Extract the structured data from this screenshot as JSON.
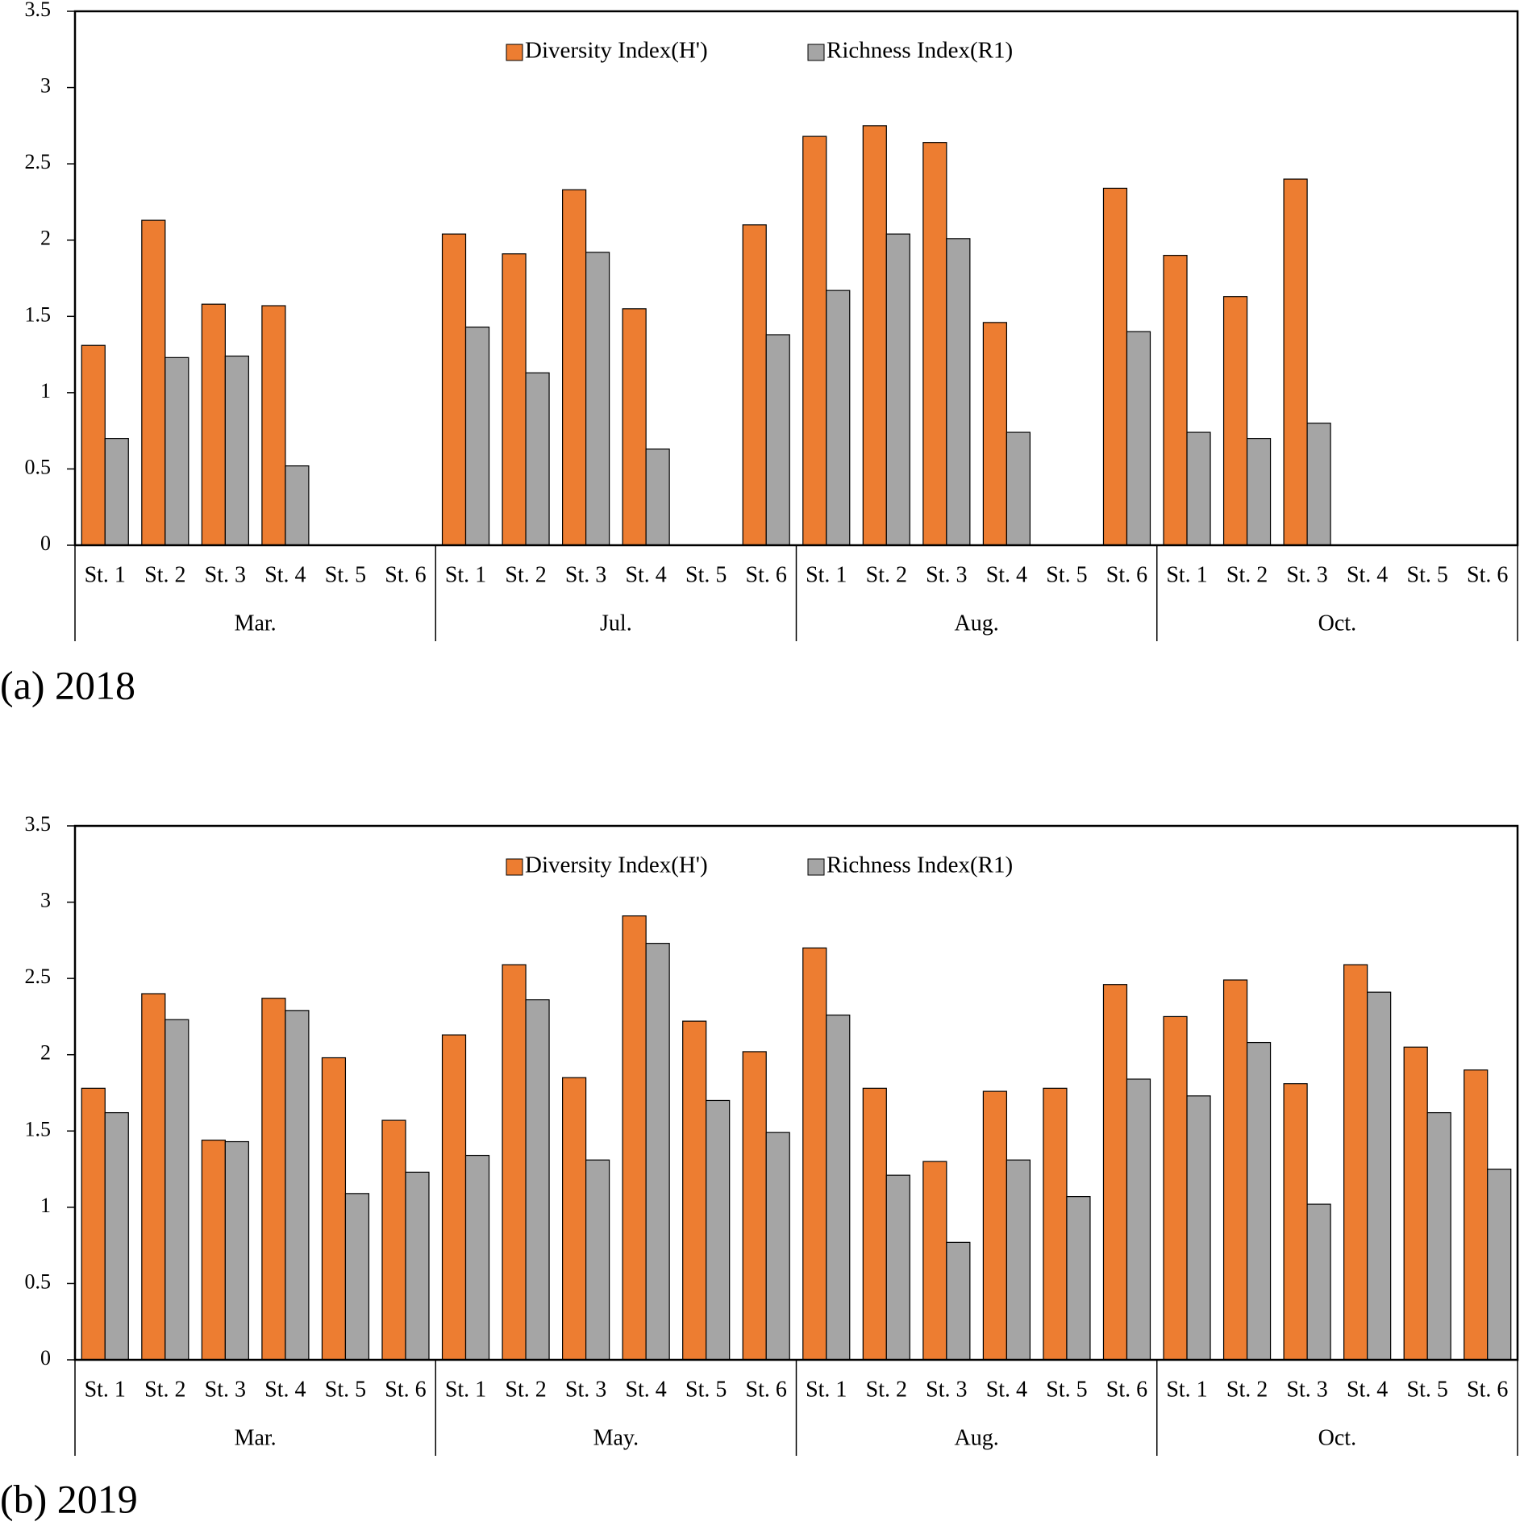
{
  "chart_data": [
    {
      "type": "bar",
      "caption": "(a) 2018",
      "categories": [
        "St. 1",
        "St. 2",
        "St. 3",
        "St. 4",
        "St. 5",
        "St. 6",
        "St. 1",
        "St. 2",
        "St. 3",
        "St. 4",
        "St. 5",
        "St. 6",
        "St. 1",
        "St. 2",
        "St. 3",
        "St. 4",
        "St. 5",
        "St. 6",
        "St. 1",
        "St. 2",
        "St. 3",
        "St. 4",
        "St. 5",
        "St. 6"
      ],
      "groups": [
        "Mar.",
        "Jul.",
        "Aug.",
        "Oct."
      ],
      "series": [
        {
          "name": "Diversity Index(H')",
          "color": "#ED7D31",
          "values": [
            1.31,
            2.13,
            1.58,
            1.57,
            null,
            null,
            2.04,
            1.91,
            2.33,
            1.55,
            null,
            2.1,
            2.68,
            2.75,
            2.64,
            1.46,
            null,
            2.34,
            1.9,
            1.63,
            2.4,
            null,
            null,
            null
          ]
        },
        {
          "name": "Richness Index(R1)",
          "color": "#A5A5A5",
          "values": [
            0.7,
            1.23,
            1.24,
            0.52,
            null,
            null,
            1.43,
            1.13,
            1.92,
            0.63,
            null,
            1.38,
            1.67,
            2.04,
            2.01,
            0.74,
            null,
            1.4,
            0.74,
            0.7,
            0.8,
            null,
            null,
            null
          ]
        }
      ],
      "ylim": [
        0,
        3.5
      ],
      "yticks": [
        0,
        0.5,
        1,
        1.5,
        2,
        2.5,
        3,
        3.5
      ],
      "legend": "top"
    },
    {
      "type": "bar",
      "caption": "(b) 2019",
      "categories": [
        "St. 1",
        "St. 2",
        "St. 3",
        "St. 4",
        "St. 5",
        "St. 6",
        "St. 1",
        "St. 2",
        "St. 3",
        "St. 4",
        "St. 5",
        "St. 6",
        "St. 1",
        "St. 2",
        "St. 3",
        "St. 4",
        "St. 5",
        "St. 6",
        "St. 1",
        "St. 2",
        "St. 3",
        "St. 4",
        "St. 5",
        "St. 6"
      ],
      "groups": [
        "Mar.",
        "May.",
        "Aug.",
        "Oct."
      ],
      "series": [
        {
          "name": "Diversity Index(H')",
          "color": "#ED7D31",
          "values": [
            1.78,
            2.4,
            1.44,
            2.37,
            1.98,
            1.57,
            2.13,
            2.59,
            1.85,
            2.91,
            2.22,
            2.02,
            2.7,
            1.78,
            1.3,
            1.76,
            1.78,
            2.46,
            2.25,
            2.49,
            1.81,
            2.59,
            2.05,
            1.9
          ]
        },
        {
          "name": "Richness Index(R1)",
          "color": "#A5A5A5",
          "values": [
            1.62,
            2.23,
            1.43,
            2.29,
            1.09,
            1.23,
            1.34,
            2.36,
            1.31,
            2.73,
            1.7,
            1.49,
            2.26,
            1.21,
            0.77,
            1.31,
            1.07,
            1.84,
            1.73,
            2.08,
            1.02,
            2.41,
            1.62,
            1.25
          ]
        }
      ],
      "ylim": [
        0,
        3.5
      ],
      "yticks": [
        0,
        0.5,
        1,
        1.5,
        2,
        2.5,
        3,
        3.5
      ],
      "legend": "top"
    }
  ]
}
